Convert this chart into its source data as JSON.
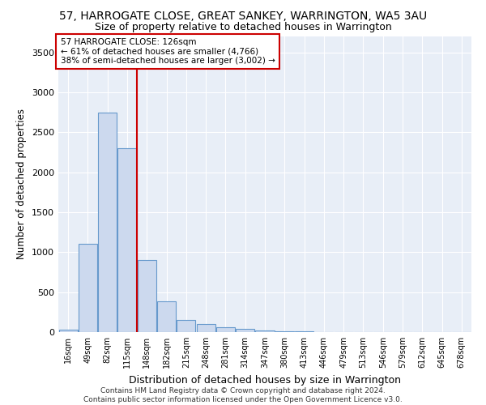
{
  "title": "57, HARROGATE CLOSE, GREAT SANKEY, WARRINGTON, WA5 3AU",
  "subtitle": "Size of property relative to detached houses in Warrington",
  "xlabel": "Distribution of detached houses by size in Warrington",
  "ylabel": "Number of detached properties",
  "categories": [
    "16sqm",
    "49sqm",
    "82sqm",
    "115sqm",
    "148sqm",
    "182sqm",
    "215sqm",
    "248sqm",
    "281sqm",
    "314sqm",
    "347sqm",
    "380sqm",
    "413sqm",
    "446sqm",
    "479sqm",
    "513sqm",
    "546sqm",
    "579sqm",
    "612sqm",
    "645sqm",
    "678sqm"
  ],
  "bar_heights": [
    30,
    1100,
    2750,
    2300,
    900,
    390,
    150,
    100,
    60,
    40,
    20,
    15,
    10,
    5,
    0,
    0,
    0,
    0,
    0,
    0,
    0
  ],
  "bar_color": "#ccd9ee",
  "bar_edge_color": "#6699cc",
  "annotation_text_line1": "57 HARROGATE CLOSE: 126sqm",
  "annotation_text_line2": "← 61% of detached houses are smaller (4,766)",
  "annotation_text_line3": "38% of semi-detached houses are larger (3,002) →",
  "annotation_box_color": "#ffffff",
  "annotation_box_edge": "#cc0000",
  "vline_color": "#cc0000",
  "footer": "Contains HM Land Registry data © Crown copyright and database right 2024.\nContains public sector information licensed under the Open Government Licence v3.0.",
  "ylim": [
    0,
    3700
  ],
  "yticks": [
    0,
    500,
    1000,
    1500,
    2000,
    2500,
    3000,
    3500
  ],
  "bg_color": "#e8eef7",
  "fig_bg": "#ffffff",
  "title_fontsize": 10,
  "subtitle_fontsize": 9
}
